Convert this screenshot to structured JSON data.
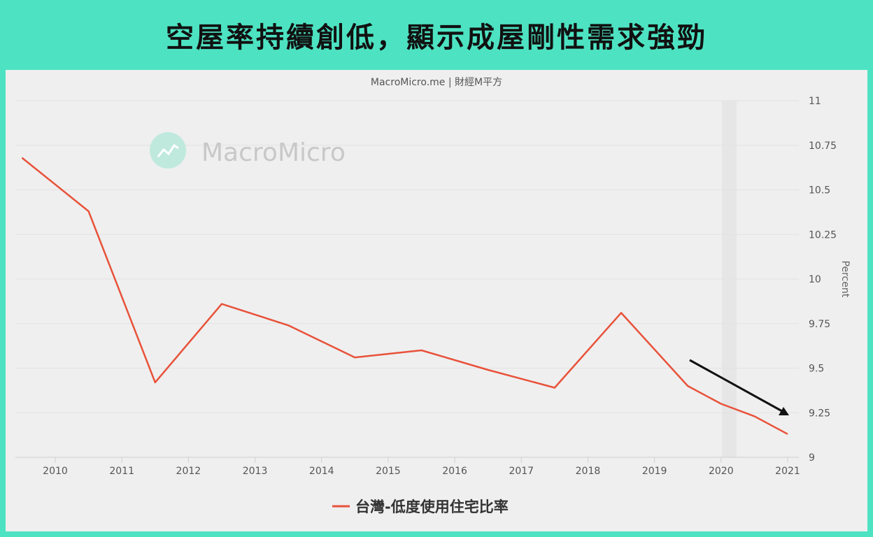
{
  "header": {
    "title": "空屋率持續創低，顯示成屋剛性需求強勁"
  },
  "chart_data": {
    "type": "line",
    "source": "MacroMicro.me | 財經M平方",
    "watermark": "MacroMicro",
    "ylabel": "Percent",
    "ylim": [
      9,
      11
    ],
    "y_ticks": [
      "9",
      "9.25",
      "9.5",
      "9.75",
      "10",
      "10.25",
      "10.5",
      "10.75",
      "11"
    ],
    "x_ticks": [
      "2010",
      "2011",
      "2012",
      "2013",
      "2014",
      "2015",
      "2016",
      "2017",
      "2018",
      "2019",
      "2020",
      "2021"
    ],
    "legend_position": "bottom-center",
    "grid": true,
    "series": [
      {
        "name": "台灣-低度使用住宅比率",
        "color": "#e8523a",
        "x": [
          2009.5,
          2010.5,
          2011.5,
          2012.5,
          2013.5,
          2014.5,
          2015.5,
          2016.5,
          2017.5,
          2018.5,
          2019.5,
          2020.0,
          2020.5,
          2021.0
        ],
        "values": [
          10.68,
          10.38,
          9.42,
          9.86,
          9.74,
          9.56,
          9.6,
          9.49,
          9.39,
          9.81,
          9.4,
          9.3,
          9.23,
          9.13
        ]
      }
    ],
    "annotation_color": "#111111"
  }
}
